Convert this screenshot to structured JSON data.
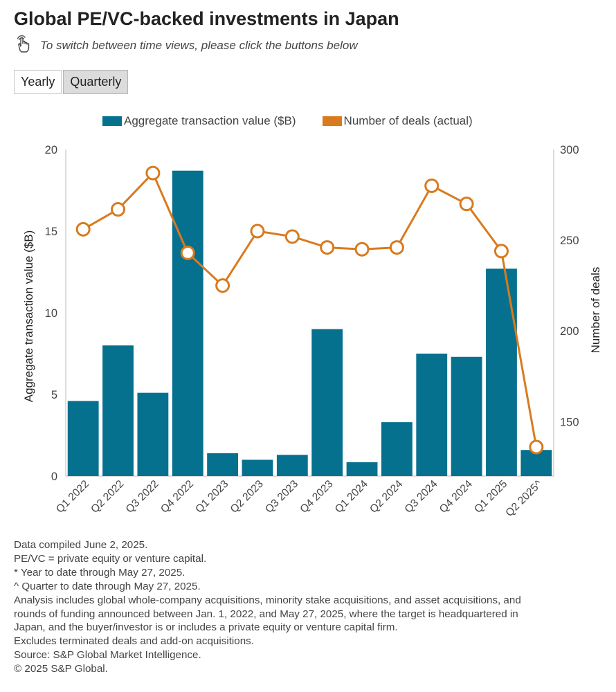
{
  "header": {
    "title": "Global PE/VC-backed investments in Japan",
    "instruction": "To switch between time views, please click the buttons below",
    "instruction_icon": "hand-pointer-icon"
  },
  "toggle": {
    "yearly_label": "Yearly",
    "quarterly_label": "Quarterly",
    "active": "Quarterly"
  },
  "colors": {
    "bar": "#06708f",
    "line": "#d97a1e",
    "axis": "#bbbbbb",
    "text": "#444444"
  },
  "chart_data": {
    "type": "bar+line",
    "categories": [
      "Q1 2022",
      "Q2 2022",
      "Q3 2022",
      "Q4 2022",
      "Q1 2023",
      "Q2 2023",
      "Q3 2023",
      "Q4 2023",
      "Q1 2024",
      "Q2 2024",
      "Q3 2024",
      "Q4 2024",
      "Q1 2025",
      "Q2 2025^"
    ],
    "series": [
      {
        "name": "Aggregate transaction value ($B)",
        "type": "bar",
        "axis": "left",
        "values": [
          4.6,
          8.0,
          5.1,
          18.7,
          1.4,
          1.0,
          1.3,
          9.0,
          0.85,
          3.3,
          7.5,
          7.3,
          12.7,
          1.6
        ]
      },
      {
        "name": "Number of deals (actual)",
        "type": "line",
        "axis": "right",
        "values": [
          256,
          267,
          287,
          243,
          225,
          255,
          252,
          246,
          245,
          246,
          280,
          270,
          244,
          136
        ]
      }
    ],
    "ylabel": "Aggregate transaction value ($B)",
    "ylabel_right": "Number of deals",
    "ylim": [
      0,
      20
    ],
    "yticks": [
      "0",
      "5",
      "10",
      "15",
      "20"
    ],
    "ylim_right": [
      120,
      300
    ],
    "yticks_right": [
      "150",
      "200",
      "250",
      "300"
    ],
    "legend_position": "top"
  },
  "notes": {
    "lines": [
      "Data compiled June 2, 2025.",
      "PE/VC = private equity or venture capital.",
      "* Year to date through May 27, 2025.",
      "^ Quarter to date through May 27, 2025.",
      "Analysis includes global whole-company acquisitions, minority stake acquisitions, and asset acquisitions, and",
      "rounds of funding announced between Jan. 1, 2022, and May 27, 2025, where the target is headquartered in",
      "Japan, and the buyer/investor is or includes a private equity or venture capital firm.",
      "Excludes terminated deals and add-on acquisitions.",
      "Source: S&P Global Market Intelligence.",
      "© 2025 S&P Global."
    ]
  }
}
